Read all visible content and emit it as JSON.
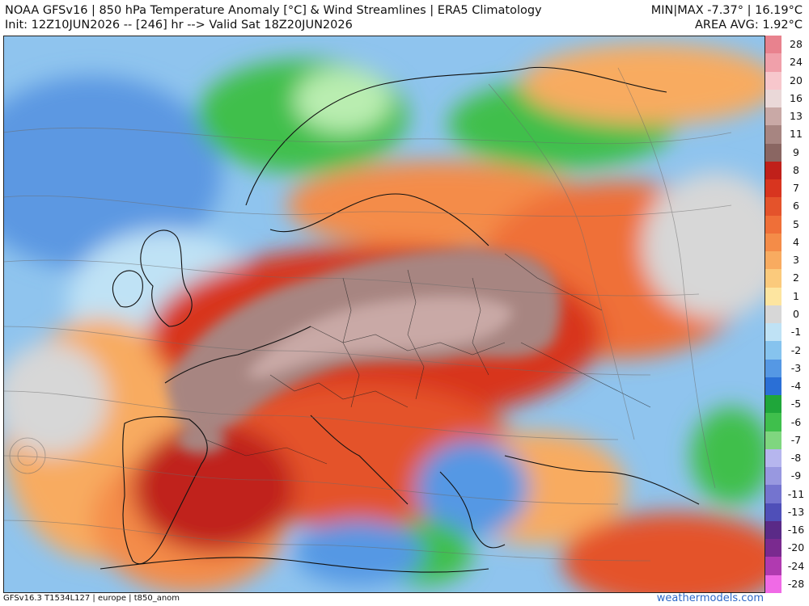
{
  "header": {
    "title_line1": "NOAA GFSv16 |  850 hPa Temperature Anomaly [°C] & Wind Streamlines | ERA5 Climatology",
    "title_line2": "Init: 12Z10JUN2026 -- [246] hr --> Valid Sat 18Z20JUN2026",
    "minmax": "MIN|MAX -7.37° | 16.19°C",
    "area_avg": "AREA AVG: 1.92°C"
  },
  "footer": {
    "model_info": "GFSv16.3 T1534L127 | europe | t850_anom",
    "brand": "weathermodels.com"
  },
  "legend": {
    "labels": [
      "28",
      "24",
      "20",
      "16",
      "13",
      "11",
      "9",
      "8",
      "7",
      "6",
      "5",
      "4",
      "3",
      "2",
      "1",
      "0",
      "-1",
      "-2",
      "-3",
      "-4",
      "-5",
      "-6",
      "-7",
      "-8",
      "-9",
      "-11",
      "-13",
      "-16",
      "-20",
      "-24",
      "-28"
    ],
    "colors": [
      "#e8828e",
      "#f0a0aa",
      "#f7c7cc",
      "#ead8d8",
      "#c9a9a6",
      "#a78581",
      "#8a6662",
      "#c0201a",
      "#d8351f",
      "#e4532b",
      "#ef6f38",
      "#f48c48",
      "#f8ab60",
      "#fbca7c",
      "#fde5a0",
      "#d7d7d7",
      "#bfe2f5",
      "#86c3ee",
      "#5598e4",
      "#2a6fd6",
      "#1fa63a",
      "#3fbf4c",
      "#7fd67f",
      "#b6b6ee",
      "#9898e0",
      "#7474cf",
      "#4f4fb8",
      "#5a2a87",
      "#7a2a8f",
      "#b03ab0",
      "#f06ae6"
    ]
  },
  "map": {
    "region": "europe",
    "colors": {
      "background_anom_neutral": "#d9d9d9",
      "warm_max": "#8a6662",
      "cold_accent": "#2a6fd6",
      "green_cold": "#3fbf4c"
    }
  }
}
